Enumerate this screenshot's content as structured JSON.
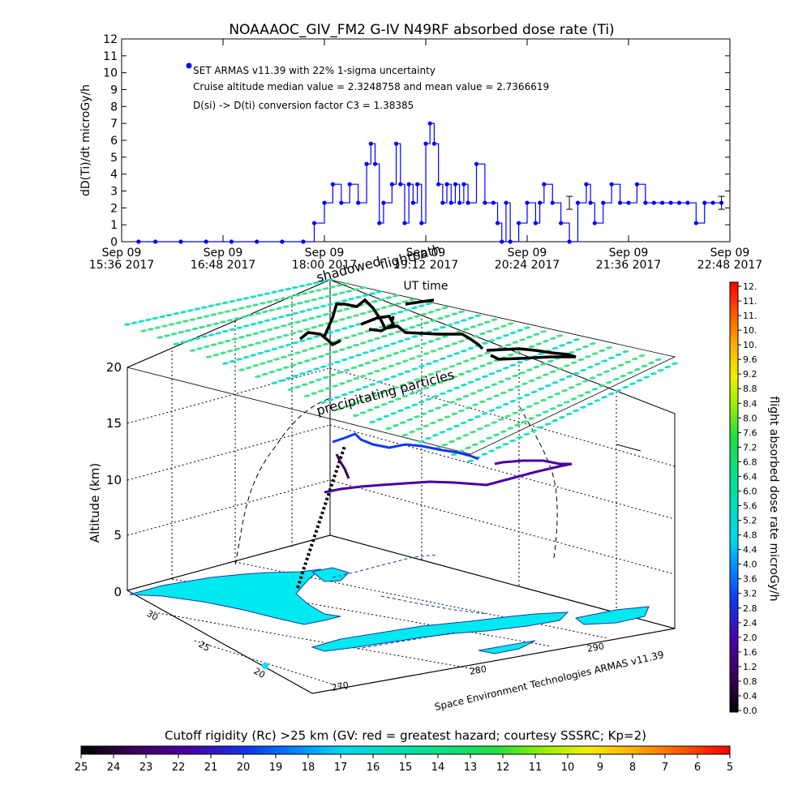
{
  "chart_data": [
    {
      "type": "line",
      "title": "NOAAAOC_GIV_FM2 G-IV    N49RF  absorbed dose rate (Ti)",
      "ylabel": "dD(Ti)/dt microGy/h",
      "xlabel": "UT time",
      "ylim": [
        0,
        12
      ],
      "y_ticks": [
        "0",
        "1",
        "2",
        "3",
        "4",
        "5",
        "6",
        "7",
        "8",
        "9",
        "10",
        "11",
        "12"
      ],
      "x_ticks": [
        {
          "l1": "Sep 09",
          "l2": "15:36 2017"
        },
        {
          "l1": "Sep 09",
          "l2": "16:48 2017"
        },
        {
          "l1": "Sep 09",
          "l2": "18:00 2017"
        },
        {
          "l1": "Sep 09",
          "l2": "19:12 2017"
        },
        {
          "l1": "Sep 09",
          "l2": "20:24 2017"
        },
        {
          "l1": "Sep 09",
          "l2": "21:36 2017"
        },
        {
          "l1": "Sep 09",
          "l2": "22:48 2017"
        }
      ],
      "x_range_hours": [
        15.6,
        22.8
      ],
      "legend": {
        "marker_label": "SET ARMAS v11.39 with 22% 1-sigma uncertainty",
        "line2": "Cruise altitude median value = 2.3248758 and mean value = 2.7366619",
        "line3": "D(si) -> D(ti) conversion factor C3 = 1.38385"
      },
      "series": [
        {
          "x": [
            15.8,
            16.0,
            16.3,
            16.6,
            16.9,
            17.2,
            17.5,
            17.75,
            17.88,
            18.0,
            18.1,
            18.2,
            18.3,
            18.4,
            18.5,
            18.55,
            18.6,
            18.65,
            18.7,
            18.8,
            18.85,
            18.9,
            18.95,
            19.0,
            19.05,
            19.1,
            19.15,
            19.2,
            19.25,
            19.3,
            19.35,
            19.4,
            19.45,
            19.5,
            19.55,
            19.6,
            19.65,
            19.7,
            19.8,
            19.9,
            20.0,
            20.05,
            20.1,
            20.15,
            20.2,
            20.3,
            20.4,
            20.5,
            20.55,
            20.6,
            20.7,
            20.8,
            20.9,
            21.0,
            21.1,
            21.15,
            21.2,
            21.3,
            21.4,
            21.5,
            21.6,
            21.7,
            21.8,
            21.9,
            22.0,
            22.1,
            22.2,
            22.3,
            22.4,
            22.5,
            22.6,
            22.7
          ],
          "y": [
            0,
            0,
            0,
            0,
            0,
            0,
            0,
            0,
            1.1,
            2.3,
            3.4,
            2.3,
            3.4,
            2.3,
            4.6,
            5.8,
            4.6,
            1.1,
            2.3,
            3.4,
            5.8,
            3.4,
            1.1,
            3.4,
            2.3,
            3.4,
            1.1,
            5.8,
            7.0,
            5.8,
            3.4,
            2.3,
            3.4,
            2.3,
            3.4,
            2.3,
            3.4,
            2.3,
            4.6,
            2.3,
            2.3,
            1.1,
            0,
            2.3,
            0,
            1.1,
            2.3,
            1.1,
            2.3,
            3.4,
            2.3,
            1.1,
            0,
            2.3,
            3.4,
            2.3,
            1.1,
            2.3,
            3.4,
            2.3,
            2.3,
            3.4,
            2.3,
            2.3,
            2.3,
            2.3,
            2.3,
            2.3,
            1.1,
            2.3,
            2.3,
            2.3
          ]
        }
      ]
    },
    {
      "type": "scatter",
      "title": "3D flight path with precipitating particle layer",
      "zlabel": "Altitude (km)",
      "z_ticks": [
        "0",
        "5",
        "10",
        "15",
        "20"
      ],
      "lat_ticks": [
        "20",
        "25",
        "30"
      ],
      "lon_ticks": [
        "270",
        "280",
        "290"
      ],
      "annotations": {
        "shadowed": "shadowed",
        "flightpath": "flightpath",
        "precip": "precipitating particles",
        "credit": "Space Environment Technologies ARMAS v11.39"
      },
      "cruise_altitude_km": 12,
      "particle_layer_altitude_km": [
        16,
        20
      ]
    },
    {
      "type": "heatmap",
      "colorbar_label": "flight absorbed dose rate microGy/h",
      "colorbar_ticks": [
        "0.0",
        "0.4",
        "0.8",
        "1.2",
        "1.6",
        "2.0",
        "2.4",
        "2.8",
        "3.2",
        "3.6",
        "4.0",
        "4.4",
        "4.8",
        "5.2",
        "5.6",
        "6.0",
        "6.4",
        "6.8",
        "7.2",
        "7.6",
        "8.0",
        "8.4",
        "8.8",
        "9.2",
        "9.6",
        "10.",
        "10.",
        "11.",
        "11.",
        "12."
      ],
      "range": [
        0,
        12
      ]
    },
    {
      "type": "heatmap",
      "colorbar_label": "Cutoff rigidity (Rc) >25 km (GV: red = greatest hazard; courtesy SSSRC; Kp=2)",
      "colorbar_ticks": [
        "25",
        "24",
        "23",
        "22",
        "21",
        "20",
        "19",
        "18",
        "17",
        "16",
        "15",
        "14",
        "13",
        "12",
        "11",
        "10",
        "9",
        "8",
        "7",
        "6",
        "5"
      ],
      "range": [
        25,
        5
      ]
    }
  ],
  "colors": {
    "plot_line": "#0000ff",
    "map_fill": "#00e8f0",
    "particle_fill": "#4ce08a"
  }
}
